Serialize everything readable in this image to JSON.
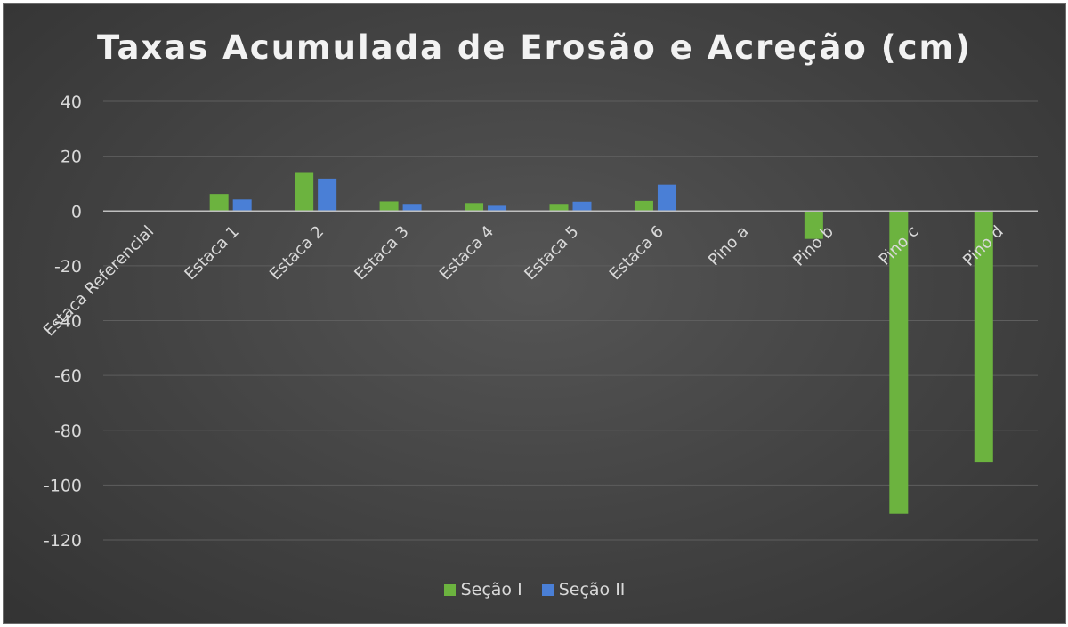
{
  "chart_data": {
    "type": "bar",
    "title": "Taxas Acumulada de Erosão e Acreção (cm)",
    "categories": [
      "Estaca Referencial",
      "Estaca 1",
      "Estaca 2",
      "Estaca 3",
      "Estaca 4",
      "Estaca 5",
      "Estaca 6",
      "Pino a",
      "Pino b",
      "Pino c",
      "Pino d"
    ],
    "series": [
      {
        "name": "Seção I",
        "color": "#6cb33f",
        "values": [
          0,
          6.2,
          14.2,
          3.5,
          2.9,
          2.6,
          3.7,
          0,
          -10.2,
          -110.5,
          -91.8
        ]
      },
      {
        "name": "Seção II",
        "color": "#4a7fd6",
        "values": [
          0,
          4.2,
          11.8,
          2.6,
          1.9,
          3.4,
          9.6,
          0,
          0,
          0,
          0
        ]
      }
    ],
    "y_ticks": [
      40,
      20,
      0,
      -20,
      -40,
      -60,
      -80,
      -100,
      -120
    ],
    "ylim": [
      -120,
      40
    ],
    "grid": true,
    "legend": "bottom"
  }
}
